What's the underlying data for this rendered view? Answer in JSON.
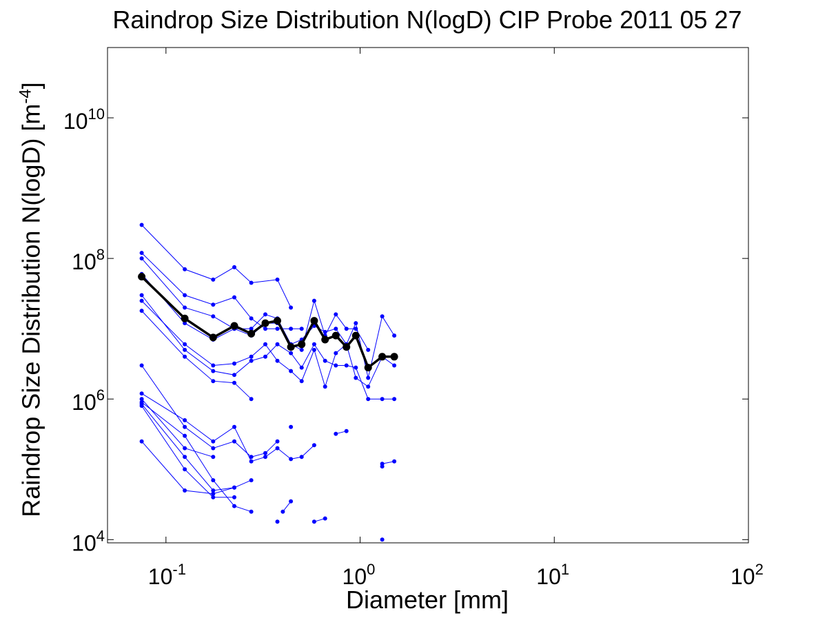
{
  "chart_data": {
    "type": "line",
    "title": "Raindrop Size Distribution N(logD) CIP Probe 2011 05 27",
    "xlabel": "Diameter [mm]",
    "ylabel": "Raindrop Size Distribution N(logD) [m",
    "ylabel_exponent": "-4",
    "ylabel_suffix": "]",
    "x_scale": "log",
    "y_scale": "log",
    "xlim": [
      0.05,
      100
    ],
    "ylim": [
      9000,
      100000000000
    ],
    "xticks": [
      {
        "value": 0.1,
        "base": "10",
        "exp": "-1"
      },
      {
        "value": 1,
        "base": "10",
        "exp": "0"
      },
      {
        "value": 10,
        "base": "10",
        "exp": "1"
      },
      {
        "value": 100,
        "base": "10",
        "exp": "2"
      }
    ],
    "yticks": [
      {
        "value": 10000,
        "base": "10",
        "exp": "4"
      },
      {
        "value": 1000000,
        "base": "10",
        "exp": "6"
      },
      {
        "value": 100000000,
        "base": "10",
        "exp": "8"
      },
      {
        "value": 10000000000,
        "base": "10",
        "exp": "10"
      }
    ],
    "grid": false,
    "colors": {
      "series": "#0000ff",
      "mean": "#000000"
    },
    "series": [
      {
        "x": [
          0.075,
          0.125,
          0.175,
          0.225,
          0.275,
          0.375,
          0.44
        ],
        "y": [
          300000000,
          70000000,
          50000000,
          75000000,
          45000000,
          50000000,
          20000000
        ]
      },
      {
        "x": [
          0.075,
          0.125,
          0.175,
          0.225,
          0.275,
          0.325,
          0.375,
          0.44,
          0.5
        ],
        "y": [
          120000000,
          30000000,
          22000000,
          28000000,
          14000000,
          10000000,
          10000000,
          10000000,
          10000000
        ]
      },
      {
        "x": [
          0.075,
          0.125,
          0.175,
          0.225,
          0.275,
          0.325,
          0.375,
          0.44,
          0.5,
          0.58,
          0.66,
          0.75,
          0.85,
          0.95,
          1.1
        ],
        "y": [
          100000000,
          20000000,
          15000000,
          10000000,
          10000000,
          16000000,
          14000000,
          6000000,
          5000000,
          25000000,
          8000000,
          16000000,
          10000000,
          10000000,
          5000000
        ]
      },
      {
        "x": [
          0.075,
          0.125,
          0.175,
          0.225,
          0.275,
          0.325,
          0.375,
          0.44,
          0.5,
          0.58,
          0.66,
          0.75,
          0.85,
          0.95,
          1.1,
          1.3,
          1.5
        ],
        "y": [
          60000000,
          12000000,
          7000000,
          10000000,
          8000000,
          12000000,
          12000000,
          6000000,
          7000000,
          11000000,
          9000000,
          10000000,
          6000000,
          12000000,
          2000000,
          15000000,
          8000000
        ]
      },
      {
        "x": [
          0.075,
          0.125,
          0.175,
          0.225,
          0.275,
          0.325,
          0.375,
          0.44,
          0.5,
          0.58,
          0.66,
          0.75,
          0.85,
          0.95,
          1.1,
          1.3,
          1.5
        ],
        "y": [
          25000000,
          6000000,
          3000000,
          3200000,
          4000000,
          6000000,
          3500000,
          2500000,
          1800000,
          5000000,
          1500000,
          4500000,
          6000000,
          2000000,
          1500000,
          4000000,
          3000000
        ]
      },
      {
        "x": [
          0.075,
          0.125,
          0.175,
          0.225,
          0.275,
          0.325,
          0.375,
          0.44,
          0.5,
          0.58,
          0.66,
          0.75,
          0.85,
          0.95,
          1.1,
          1.3,
          1.5
        ],
        "y": [
          30000000,
          5000000,
          2500000,
          2200000,
          3500000,
          4000000,
          6000000,
          4500000,
          2800000,
          6000000,
          3500000,
          3000000,
          3000000,
          2800000,
          1000000,
          1000000,
          1000000
        ]
      },
      {
        "x": [
          0.075,
          0.125,
          0.175,
          0.225,
          0.275
        ],
        "y": [
          18000000,
          4000000,
          1800000,
          1700000,
          1000000
        ]
      },
      {
        "x": [
          0.075,
          0.125,
          0.175,
          0.225,
          0.275,
          0.325,
          0.375
        ],
        "y": [
          3000000,
          400000,
          200000,
          250000,
          150000,
          170000,
          250000
        ]
      },
      {
        "x": [
          0.075,
          0.125,
          0.175,
          0.225,
          0.275,
          0.325,
          0.375,
          0.44,
          0.5,
          0.58
        ],
        "y": [
          1200000,
          500000,
          250000,
          400000,
          130000,
          150000,
          200000,
          140000,
          150000,
          220000
        ]
      },
      {
        "x": [
          0.075,
          0.125,
          0.175
        ],
        "y": [
          1000000,
          200000,
          150000
        ]
      },
      {
        "x": [
          0.075,
          0.125,
          0.175,
          0.225,
          0.275
        ],
        "y": [
          850000,
          150000,
          50000,
          55000,
          70000
        ]
      },
      {
        "x": [
          0.075,
          0.125,
          0.175,
          0.225,
          0.275
        ],
        "y": [
          900000,
          300000,
          70000,
          30000,
          25000
        ]
      },
      {
        "x": [
          0.075,
          0.125,
          0.175,
          0.225
        ],
        "y": [
          250000,
          50000,
          45000,
          55000
        ]
      },
      {
        "x": [
          0.075,
          0.125,
          0.175,
          0.225
        ],
        "y": [
          800000,
          100000,
          40000,
          40000
        ]
      },
      {
        "x": [
          0.75,
          0.85
        ],
        "y": [
          320000,
          350000
        ]
      },
      {
        "x": [
          0.4,
          0.44
        ],
        "y": [
          25000,
          35000
        ]
      },
      {
        "x": [
          0.58,
          0.66
        ],
        "y": [
          18000,
          20000
        ]
      },
      {
        "x": [
          1.3,
          1.5
        ],
        "y": [
          120000,
          130000
        ]
      },
      {
        "x": [
          0.375
        ],
        "y": [
          18000
        ]
      },
      {
        "x": [
          0.44
        ],
        "y": [
          400000
        ]
      },
      {
        "x": [
          1.3
        ],
        "y": [
          10000
        ]
      },
      {
        "x": [
          1.3
        ],
        "y": [
          110000
        ]
      }
    ],
    "mean_series": {
      "x": [
        0.075,
        0.125,
        0.175,
        0.225,
        0.275,
        0.325,
        0.375,
        0.44,
        0.5,
        0.58,
        0.66,
        0.75,
        0.85,
        0.95,
        1.1,
        1.3,
        1.5
      ],
      "y": [
        55000000,
        14000000,
        7500000,
        11000000,
        8500000,
        12000000,
        13000000,
        5500000,
        6000000,
        13000000,
        7000000,
        8000000,
        5500000,
        8000000,
        2800000,
        4000000,
        4000000
      ]
    }
  }
}
